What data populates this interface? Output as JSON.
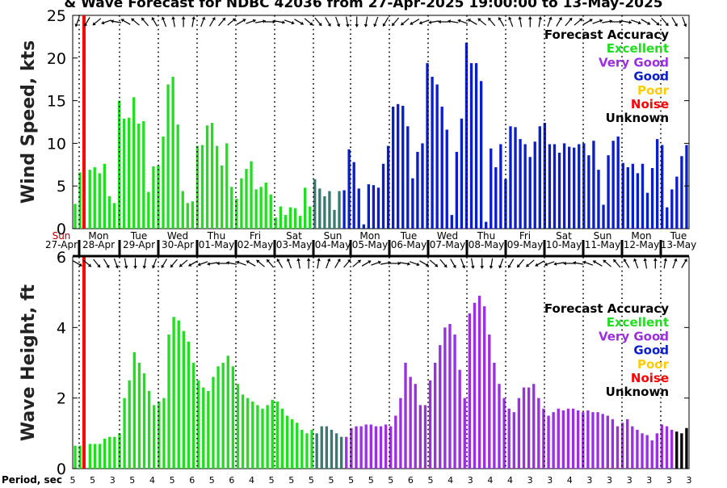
{
  "title": "& Wave Forecast for NDBC 42036 from 27-Apr-2025 19:00:00 to 13-May-2025",
  "colors": {
    "excellent": "#22dd22",
    "very_good": "#9b30e0",
    "good": "#0a1ecc",
    "poor": "#ffcc00",
    "noise": "#ff0000",
    "unknown": "#000000",
    "transition": "#3b7a70"
  },
  "legend": {
    "title": "Forecast Accuracy",
    "items": [
      {
        "label": "Excellent",
        "key": "excellent"
      },
      {
        "label": "Very Good",
        "key": "very_good"
      },
      {
        "label": "Good",
        "key": "good"
      },
      {
        "label": "Poor",
        "key": "poor"
      },
      {
        "label": "Noise",
        "key": "noise"
      },
      {
        "label": "Unknown",
        "key": "unknown"
      }
    ]
  },
  "day_labels": [
    {
      "day": "Sun",
      "date": "27-Apr"
    },
    {
      "day": "Mon",
      "date": "28-Apr"
    },
    {
      "day": "Tue",
      "date": "29-Apr"
    },
    {
      "day": "Wed",
      "date": "30-Apr"
    },
    {
      "day": "Thu",
      "date": "01-May"
    },
    {
      "day": "Fri",
      "date": "02-May"
    },
    {
      "day": "Sat",
      "date": "03-May"
    },
    {
      "day": "Sun",
      "date": "04-May"
    },
    {
      "day": "Mon",
      "date": "05-May"
    },
    {
      "day": "Tue",
      "date": "06-May"
    },
    {
      "day": "Wed",
      "date": "07-May"
    },
    {
      "day": "Thu",
      "date": "08-May"
    },
    {
      "day": "Fri",
      "date": "09-May"
    },
    {
      "day": "Sat",
      "date": "10-May"
    },
    {
      "day": "Sun",
      "date": "11-May"
    },
    {
      "day": "Mon",
      "date": "12-May"
    },
    {
      "day": "Tue",
      "date": "13-May"
    }
  ],
  "period_label": "Period, sec",
  "period_ticks": [
    "5",
    "5",
    "3",
    "5",
    "4",
    "5",
    "6",
    "5",
    "6",
    "4",
    "5",
    "5",
    "5",
    "5",
    "5",
    "5",
    "5",
    "6",
    "5",
    "4",
    "3",
    "4",
    "4",
    "3",
    "3",
    "4",
    "3",
    "3",
    "3",
    "3",
    "3",
    "3"
  ],
  "chart_data": [
    {
      "type": "bar",
      "ylabel": "Wind Speed, kts",
      "ylim": [
        0,
        25
      ],
      "yticks": [
        0,
        5,
        10,
        15,
        20,
        25
      ],
      "values": [
        2.9,
        6.6,
        0,
        6.9,
        7.2,
        6.5,
        7.6,
        3.8,
        3.0,
        15.0,
        12.9,
        13.0,
        15.4,
        12.3,
        12.6,
        4.3,
        7.3,
        7.4,
        10.8,
        16.9,
        17.8,
        12.2,
        4.4,
        3.0,
        3.2,
        9.7,
        9.8,
        12.1,
        12.4,
        9.7,
        7.4,
        10.0,
        4.9,
        3.5,
        5.9,
        7.0,
        7.9,
        4.6,
        4.9,
        5.4,
        4.0,
        1.3,
        2.6,
        1.6,
        2.5,
        2.4,
        1.5,
        4.8,
        2.6,
        5.8,
        4.7,
        3.8,
        4.4,
        2.2,
        4.4,
        4.5,
        9.3,
        7.8,
        4.7,
        0.5,
        5.2,
        5.1,
        4.8,
        7.6,
        9.7,
        14.3,
        14.6,
        14.4,
        12.0,
        5.9,
        9.0,
        10.0,
        19.4,
        17.8,
        16.9,
        14.3,
        11.6,
        1.6,
        9.0,
        12.9,
        21.8,
        19.4,
        19.4,
        17.3,
        0.8,
        9.4,
        7.2,
        9.9,
        5.8,
        12.0,
        11.9,
        10.5,
        9.9,
        8.4,
        10.2,
        12.0,
        12.4,
        9.9,
        9.9,
        8.9,
        10.0,
        9.6,
        9.5,
        9.9,
        10.0,
        8.6,
        10.3,
        6.9,
        2.8,
        8.6,
        10.3,
        10.8,
        7.7,
        7.2,
        7.6,
        6.5,
        7.6,
        4.2,
        7.1,
        10.5,
        9.8,
        2.5,
        4.6,
        6.1,
        8.5,
        9.8
      ],
      "colors": [
        "excellent",
        "excellent",
        "excellent",
        "excellent",
        "excellent",
        "excellent",
        "excellent",
        "excellent",
        "excellent",
        "excellent",
        "excellent",
        "excellent",
        "excellent",
        "excellent",
        "excellent",
        "excellent",
        "excellent",
        "excellent",
        "excellent",
        "excellent",
        "excellent",
        "excellent",
        "excellent",
        "excellent",
        "excellent",
        "excellent",
        "excellent",
        "excellent",
        "excellent",
        "excellent",
        "excellent",
        "excellent",
        "excellent",
        "excellent",
        "excellent",
        "excellent",
        "excellent",
        "excellent",
        "excellent",
        "excellent",
        "excellent",
        "excellent",
        "excellent",
        "excellent",
        "excellent",
        "excellent",
        "excellent",
        "excellent",
        "excellent",
        "transition",
        "transition",
        "transition",
        "transition",
        "transition",
        "transition",
        "good",
        "good",
        "good",
        "good",
        "good",
        "good",
        "good",
        "good",
        "good",
        "good",
        "good",
        "good",
        "good",
        "good",
        "good",
        "good",
        "good",
        "good",
        "good",
        "good",
        "good",
        "good",
        "good",
        "good",
        "good",
        "good",
        "good",
        "good",
        "good",
        "good",
        "good",
        "good",
        "good",
        "good",
        "good",
        "good",
        "good",
        "good",
        "good",
        "good",
        "good",
        "good",
        "good",
        "good",
        "good",
        "good",
        "good",
        "good",
        "good",
        "good",
        "good",
        "good",
        "good",
        "good",
        "good",
        "good",
        "good",
        "good",
        "good",
        "good",
        "good",
        "good",
        "good",
        "good",
        "good",
        "good",
        "good",
        "good",
        "good",
        "good",
        "good"
      ]
    },
    {
      "type": "bar",
      "ylabel": "Wave Height, ft",
      "ylim": [
        0,
        6
      ],
      "yticks": [
        0,
        2,
        4,
        6
      ],
      "values": [
        0.65,
        0.65,
        0,
        0.7,
        0.7,
        0.7,
        0.85,
        0.9,
        0.9,
        1.0,
        2.0,
        2.5,
        3.3,
        3.0,
        2.7,
        2.2,
        1.8,
        1.9,
        2.0,
        3.8,
        4.3,
        4.2,
        3.9,
        3.6,
        3.0,
        2.5,
        2.3,
        2.2,
        2.6,
        2.9,
        3.0,
        3.2,
        2.9,
        2.4,
        2.1,
        2.0,
        1.9,
        1.8,
        1.7,
        1.8,
        1.95,
        1.9,
        1.7,
        1.5,
        1.4,
        1.3,
        1.1,
        1.0,
        1.1,
        1.0,
        1.2,
        1.2,
        1.1,
        1.0,
        0.9,
        0.9,
        1.15,
        1.2,
        1.2,
        1.25,
        1.25,
        1.2,
        1.2,
        1.25,
        1.2,
        1.5,
        2.0,
        3.0,
        2.6,
        2.4,
        1.8,
        1.8,
        2.5,
        3.0,
        3.5,
        4.0,
        4.1,
        3.8,
        2.8,
        2.0,
        4.4,
        4.7,
        4.9,
        4.6,
        3.8,
        3.0,
        2.4,
        2.0,
        1.7,
        1.6,
        2.0,
        2.3,
        2.3,
        2.4,
        2.0,
        1.7,
        1.5,
        1.6,
        1.7,
        1.65,
        1.7,
        1.7,
        1.65,
        1.6,
        1.65,
        1.6,
        1.6,
        1.55,
        1.5,
        1.4,
        1.2,
        1.3,
        1.4,
        1.2,
        1.1,
        1.0,
        0.95,
        0.8,
        1.0,
        1.25,
        1.2,
        1.1,
        1.05,
        1.0,
        1.15
      ],
      "colors": [
        "excellent",
        "excellent",
        "excellent",
        "excellent",
        "excellent",
        "excellent",
        "excellent",
        "excellent",
        "excellent",
        "excellent",
        "excellent",
        "excellent",
        "excellent",
        "excellent",
        "excellent",
        "excellent",
        "excellent",
        "excellent",
        "excellent",
        "excellent",
        "excellent",
        "excellent",
        "excellent",
        "excellent",
        "excellent",
        "excellent",
        "excellent",
        "excellent",
        "excellent",
        "excellent",
        "excellent",
        "excellent",
        "excellent",
        "excellent",
        "excellent",
        "excellent",
        "excellent",
        "excellent",
        "excellent",
        "excellent",
        "excellent",
        "excellent",
        "excellent",
        "excellent",
        "excellent",
        "excellent",
        "excellent",
        "excellent",
        "excellent",
        "transition",
        "transition",
        "transition",
        "transition",
        "transition",
        "transition",
        "very_good",
        "very_good",
        "very_good",
        "very_good",
        "very_good",
        "very_good",
        "very_good",
        "very_good",
        "very_good",
        "very_good",
        "very_good",
        "very_good",
        "very_good",
        "very_good",
        "very_good",
        "very_good",
        "very_good",
        "very_good",
        "very_good",
        "very_good",
        "very_good",
        "very_good",
        "very_good",
        "very_good",
        "very_good",
        "very_good",
        "very_good",
        "very_good",
        "very_good",
        "very_good",
        "very_good",
        "very_good",
        "very_good",
        "very_good",
        "very_good",
        "very_good",
        "very_good",
        "very_good",
        "very_good",
        "very_good",
        "very_good",
        "very_good",
        "very_good",
        "very_good",
        "very_good",
        "very_good",
        "very_good",
        "very_good",
        "very_good",
        "very_good",
        "very_good",
        "very_good",
        "very_good",
        "very_good",
        "very_good",
        "very_good",
        "very_good",
        "very_good",
        "very_good",
        "very_good",
        "very_good",
        "very_good",
        "very_good",
        "very_good",
        "very_good",
        "very_good",
        "very_good"
      ]
    }
  ],
  "wind_arrow_directions_deg": [
    200,
    210,
    230,
    250,
    280,
    300,
    310,
    320,
    330,
    340,
    350,
    0,
    10,
    20,
    30,
    40,
    50,
    60,
    70,
    80,
    90,
    100,
    110,
    120,
    130,
    140,
    150,
    160,
    170,
    180,
    190,
    200,
    210,
    220,
    230,
    240,
    250,
    260,
    270,
    280,
    290,
    300,
    310,
    320,
    330,
    340,
    350,
    0,
    10,
    20,
    30,
    40,
    50,
    60,
    70,
    80,
    90,
    100,
    110,
    120,
    130,
    140,
    150,
    160
  ],
  "wave_arrow_directions_deg": [
    120,
    130,
    140,
    150,
    160,
    170,
    180,
    190,
    200,
    210,
    220,
    230,
    240,
    250,
    260,
    270,
    280,
    290,
    300,
    310,
    320,
    330,
    340,
    350,
    0,
    10,
    20,
    30,
    40,
    50,
    60,
    70,
    80,
    90,
    100,
    110,
    120,
    130,
    140,
    150,
    160,
    170,
    180,
    190,
    200,
    210,
    220,
    230,
    240,
    250,
    260,
    270,
    280,
    290,
    300,
    310,
    320,
    330,
    340,
    350,
    0,
    10,
    20,
    30
  ]
}
